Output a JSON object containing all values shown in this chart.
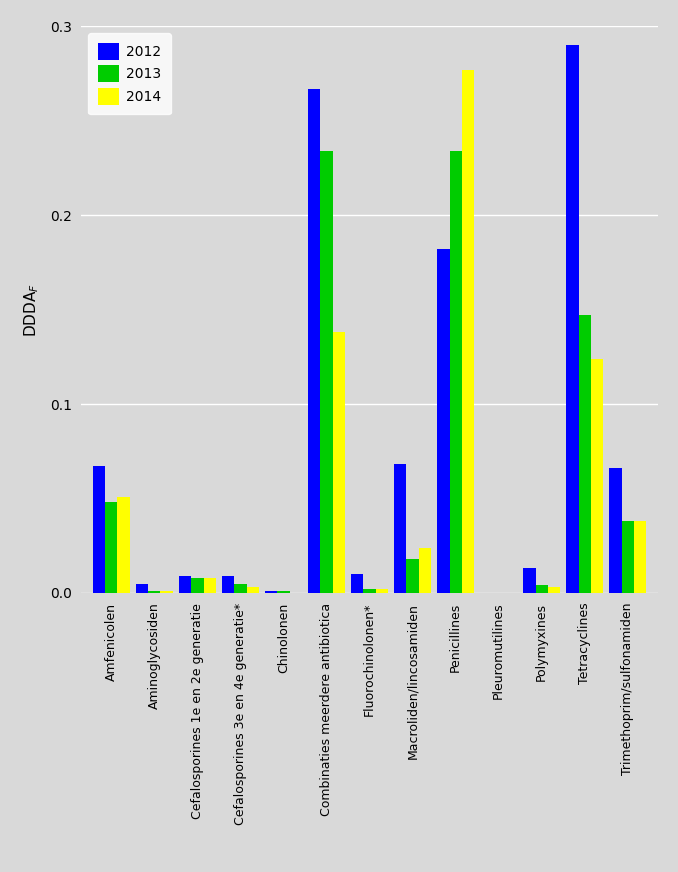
{
  "categories": [
    "Amfenicolen",
    "Aminoglycosiden",
    "Cefalosporines 1e en 2e generatie",
    "Cefalosporines 3e en 4e generatie*",
    "Chinolonen",
    "Combinaties meerdere antibiotica",
    "Fluorochinolonen*",
    "Macroliden/lincosamiden",
    "Penicillines",
    "Pleuromutilines",
    "Polymyxines",
    "Tetracyclines",
    "Trimethoprim/sulfonamiden"
  ],
  "values_2012": [
    0.067,
    0.005,
    0.009,
    0.009,
    0.001,
    0.267,
    0.01,
    0.068,
    0.182,
    0.0,
    0.013,
    0.29,
    0.066
  ],
  "values_2013": [
    0.048,
    0.001,
    0.008,
    0.005,
    0.001,
    0.234,
    0.002,
    0.018,
    0.234,
    0.0,
    0.004,
    0.147,
    0.038
  ],
  "values_2014": [
    0.051,
    0.001,
    0.008,
    0.003,
    0.0,
    0.138,
    0.002,
    0.024,
    0.277,
    0.0,
    0.003,
    0.124,
    0.038
  ],
  "colors": [
    "#0000FF",
    "#00CC00",
    "#FFFF00"
  ],
  "legend_labels": [
    "2012",
    "2013",
    "2014"
  ],
  "ylim": [
    0,
    0.3
  ],
  "yticks": [
    0.0,
    0.1,
    0.2,
    0.3
  ],
  "background_color": "#D9D9D9",
  "grid_color": "#FFFFFF",
  "bar_width": 0.28,
  "figsize": [
    6.78,
    8.72
  ],
  "dpi": 100
}
